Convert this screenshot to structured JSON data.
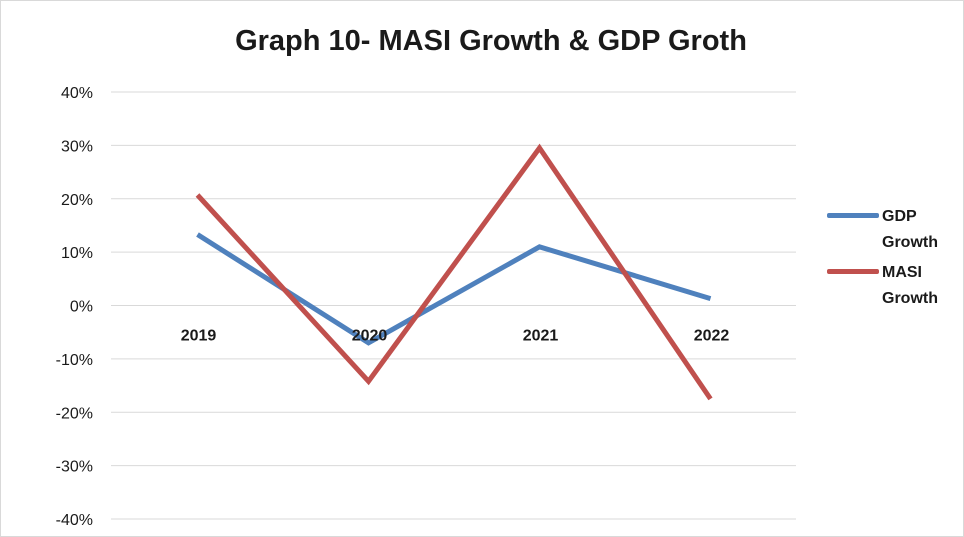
{
  "chart_data": {
    "type": "line",
    "title": "Graph 10- MASI Growth & GDP Groth",
    "categories": [
      "2019",
      "2020",
      "2021",
      "2022"
    ],
    "yticks": [
      "40%",
      "30%",
      "20%",
      "10%",
      "0%",
      "-10%",
      "-20%",
      "-30%",
      "-40%"
    ],
    "ylim": [
      -40,
      40
    ],
    "grid": true,
    "legend_position": "right",
    "series": [
      {
        "name": "GDP Growth",
        "color": "#4f81bd",
        "values": [
          13.3,
          -7.0,
          11.0,
          1.3
        ]
      },
      {
        "name": "MASI Growth",
        "color": "#c0504d",
        "values": [
          20.7,
          -14.2,
          29.5,
          -17.5
        ]
      }
    ]
  }
}
